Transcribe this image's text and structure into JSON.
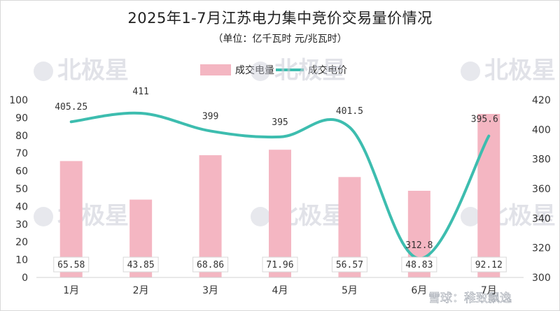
{
  "title": "2025年1-7月江苏电力集中竞价交易量价情况",
  "subtitle": "（单位：亿千瓦时 元/兆瓦时）",
  "legend": {
    "bar_label": "成交电量",
    "line_label": "成交电价"
  },
  "watermark": {
    "brand": "北极星",
    "footer": "雪球：稚致飘逸"
  },
  "colors": {
    "bar": "#f4b6c2",
    "line": "#3dbdaf"
  },
  "chart_data": {
    "type": "bar",
    "title": "2025年1-7月江苏电力集中竞价交易量价情况",
    "subtitle": "（单位：亿千瓦时 元/兆瓦时）",
    "categories": [
      "1月",
      "2月",
      "3月",
      "4月",
      "5月",
      "6月",
      "7月"
    ],
    "series": [
      {
        "name": "成交电量",
        "type": "bar",
        "axis": "left",
        "values": [
          65.58,
          43.85,
          68.86,
          71.96,
          56.57,
          48.83,
          92.12
        ],
        "labels": [
          "65.58",
          "43.85",
          "68.86",
          "71.96",
          "56.57",
          "48.83",
          "92.12"
        ]
      },
      {
        "name": "成交电价",
        "type": "line",
        "axis": "right",
        "smooth": true,
        "values": [
          405.25,
          411,
          399,
          395,
          401.5,
          312.8,
          395.6
        ],
        "labels": [
          "405.25",
          "411",
          "399",
          "395",
          "401.5",
          "312.8",
          "395.6"
        ]
      }
    ],
    "y_left": {
      "min": 0,
      "max": 100,
      "ticks": [
        "0",
        "10",
        "20",
        "30",
        "40",
        "50",
        "60",
        "70",
        "80",
        "90",
        "100"
      ]
    },
    "y_right": {
      "min": 300,
      "max": 420,
      "ticks": [
        "300",
        "320",
        "340",
        "360",
        "380",
        "400",
        "420"
      ]
    },
    "grid": false,
    "legend_position": "top"
  }
}
